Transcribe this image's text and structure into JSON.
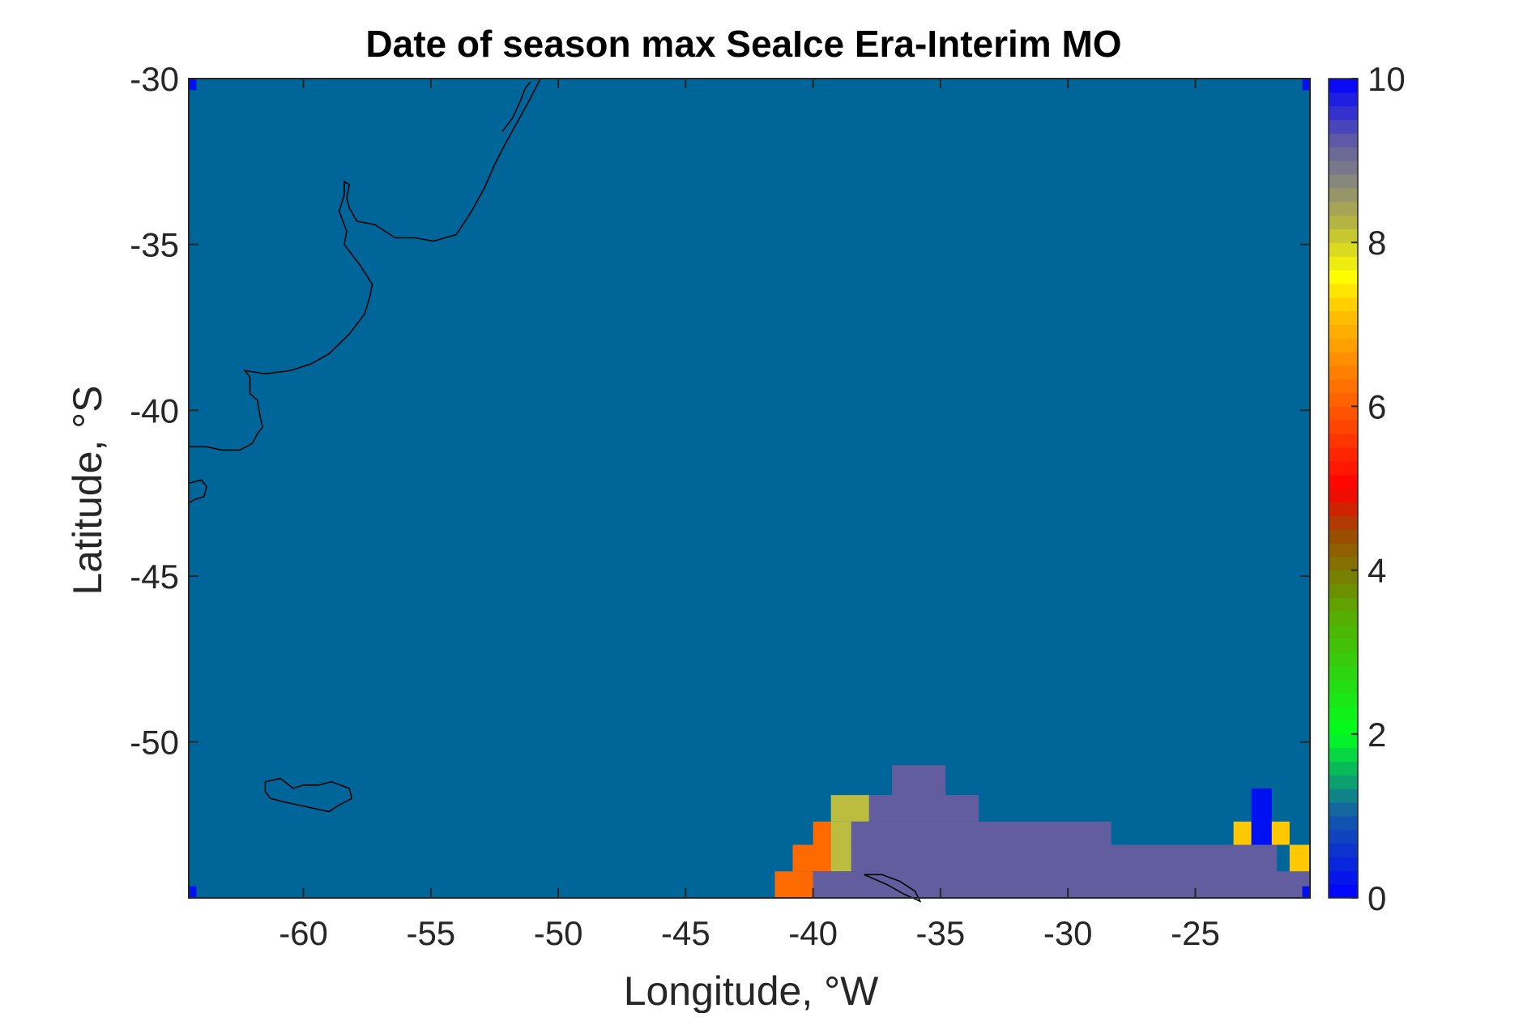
{
  "chart_data": {
    "type": "heatmap",
    "title": "Date of season max SeaIce Era-Interim MO",
    "xlabel": "Longitude, °W",
    "ylabel": "Latitude, °S",
    "xlim": [
      -64.5,
      -20.5
    ],
    "ylim": [
      -54.7,
      -30
    ],
    "xticks": [
      -60,
      -55,
      -50,
      -45,
      -40,
      -35,
      -30,
      -25
    ],
    "yticks": [
      -30,
      -35,
      -40,
      -45,
      -50
    ],
    "colorbar": {
      "clim": [
        0,
        10
      ],
      "ticks": [
        0,
        2,
        4,
        6,
        8,
        10
      ],
      "colormap": "jet-like"
    },
    "grid": false,
    "background_value": 1,
    "background_color": "#006699",
    "cells": [
      {
        "lon": [
          -41.5,
          -40.0
        ],
        "lat": [
          -54.7,
          -53.9
        ],
        "value": 6.5
      },
      {
        "lon": [
          -40.8,
          -39.3
        ],
        "lat": [
          -53.9,
          -53.1
        ],
        "value": 6.5
      },
      {
        "lon": [
          -40.0,
          -39.3
        ],
        "lat": [
          -53.1,
          -52.4
        ],
        "value": 6.5
      },
      {
        "lon": [
          -39.3,
          -38.5
        ],
        "lat": [
          -53.9,
          -52.4
        ],
        "value": 8.2
      },
      {
        "lon": [
          -39.3,
          -37.8
        ],
        "lat": [
          -52.4,
          -51.6
        ],
        "value": 8.2
      },
      {
        "lon": [
          -40.0,
          -20.5
        ],
        "lat": [
          -54.7,
          -53.9
        ],
        "value": 9.2
      },
      {
        "lon": [
          -38.5,
          -21.8
        ],
        "lat": [
          -53.9,
          -53.1
        ],
        "value": 9.2
      },
      {
        "lon": [
          -38.5,
          -28.3
        ],
        "lat": [
          -53.1,
          -52.4
        ],
        "value": 9.2
      },
      {
        "lon": [
          -37.8,
          -33.5
        ],
        "lat": [
          -52.4,
          -51.6
        ],
        "value": 9.2
      },
      {
        "lon": [
          -36.9,
          -34.8
        ],
        "lat": [
          -51.6,
          -50.7
        ],
        "value": 9.2
      },
      {
        "lon": [
          -23.5,
          -22.8
        ],
        "lat": [
          -53.1,
          -52.4
        ],
        "value": 7.3
      },
      {
        "lon": [
          -22.8,
          -22.0
        ],
        "lat": [
          -53.1,
          -51.4
        ],
        "value": 9.8
      },
      {
        "lon": [
          -22.0,
          -21.3
        ],
        "lat": [
          -53.1,
          -52.4
        ],
        "value": 7.3
      },
      {
        "lon": [
          -21.3,
          -20.5
        ],
        "lat": [
          -53.9,
          -53.1
        ],
        "value": 7.3
      },
      {
        "lon": [
          -64.5,
          -64.2
        ],
        "lat": [
          -30.35,
          -30.0
        ],
        "value": 10
      },
      {
        "lon": [
          -20.8,
          -20.5
        ],
        "lat": [
          -30.35,
          -30.0
        ],
        "value": 10
      },
      {
        "lon": [
          -64.5,
          -64.2
        ],
        "lat": [
          -54.7,
          -54.35
        ],
        "value": 10
      },
      {
        "lon": [
          -20.8,
          -20.5
        ],
        "lat": [
          -54.7,
          -54.35
        ],
        "value": 10
      }
    ],
    "coastlines": [
      [
        [
          -64.5,
          -41.1
        ],
        [
          -63.8,
          -41.1
        ],
        [
          -63.2,
          -41.2
        ],
        [
          -62.5,
          -41.2
        ],
        [
          -62.0,
          -41.0
        ],
        [
          -61.8,
          -40.7
        ],
        [
          -61.6,
          -40.5
        ],
        [
          -61.7,
          -40.2
        ],
        [
          -61.8,
          -39.7
        ],
        [
          -62.1,
          -39.5
        ],
        [
          -62.1,
          -39.0
        ],
        [
          -62.3,
          -38.8
        ],
        [
          -61.5,
          -38.9
        ],
        [
          -60.5,
          -38.8
        ],
        [
          -59.7,
          -38.6
        ],
        [
          -59.0,
          -38.3
        ],
        [
          -58.2,
          -37.7
        ],
        [
          -57.6,
          -37.1
        ],
        [
          -57.4,
          -36.6
        ],
        [
          -57.3,
          -36.2
        ],
        [
          -57.8,
          -35.6
        ],
        [
          -58.1,
          -35.3
        ],
        [
          -58.4,
          -35.0
        ],
        [
          -58.3,
          -34.6
        ],
        [
          -58.4,
          -34.4
        ],
        [
          -58.6,
          -34.0
        ],
        [
          -58.4,
          -33.5
        ],
        [
          -58.4,
          -33.1
        ],
        [
          -58.2,
          -33.2
        ],
        [
          -58.3,
          -33.6
        ],
        [
          -58.2,
          -33.9
        ],
        [
          -57.9,
          -34.3
        ],
        [
          -57.2,
          -34.4
        ],
        [
          -56.4,
          -34.8
        ],
        [
          -55.6,
          -34.8
        ],
        [
          -54.9,
          -34.9
        ],
        [
          -54.0,
          -34.7
        ],
        [
          -53.4,
          -34.0
        ],
        [
          -52.9,
          -33.3
        ],
        [
          -52.5,
          -32.6
        ],
        [
          -52.1,
          -32.0
        ],
        [
          -51.6,
          -31.3
        ],
        [
          -51.1,
          -30.6
        ],
        [
          -50.7,
          -30.0
        ]
      ],
      [
        [
          -52.2,
          -31.6
        ],
        [
          -51.8,
          -31.2
        ],
        [
          -51.5,
          -30.7
        ],
        [
          -51.3,
          -30.3
        ],
        [
          -51.1,
          -30.1
        ]
      ],
      [
        [
          -64.5,
          -42.2
        ],
        [
          -64.0,
          -42.1
        ],
        [
          -63.8,
          -42.3
        ],
        [
          -63.9,
          -42.6
        ],
        [
          -64.3,
          -42.7
        ],
        [
          -64.5,
          -42.8
        ]
      ],
      [
        [
          -61.5,
          -51.2
        ],
        [
          -60.9,
          -51.1
        ],
        [
          -60.4,
          -51.4
        ],
        [
          -60.0,
          -51.3
        ],
        [
          -59.4,
          -51.3
        ],
        [
          -58.9,
          -51.2
        ],
        [
          -58.2,
          -51.4
        ],
        [
          -58.1,
          -51.7
        ],
        [
          -58.6,
          -51.9
        ],
        [
          -59.0,
          -52.1
        ],
        [
          -59.6,
          -52.0
        ],
        [
          -60.2,
          -51.9
        ],
        [
          -60.8,
          -51.8
        ],
        [
          -61.3,
          -51.7
        ],
        [
          -61.5,
          -51.5
        ],
        [
          -61.5,
          -51.2
        ]
      ],
      [
        [
          -38.0,
          -54.0
        ],
        [
          -37.3,
          -54.0
        ],
        [
          -36.6,
          -54.2
        ],
        [
          -36.0,
          -54.5
        ],
        [
          -35.8,
          -54.8
        ],
        [
          -36.4,
          -54.6
        ],
        [
          -37.1,
          -54.3
        ],
        [
          -37.7,
          -54.1
        ],
        [
          -38.0,
          -54.0
        ]
      ]
    ]
  }
}
